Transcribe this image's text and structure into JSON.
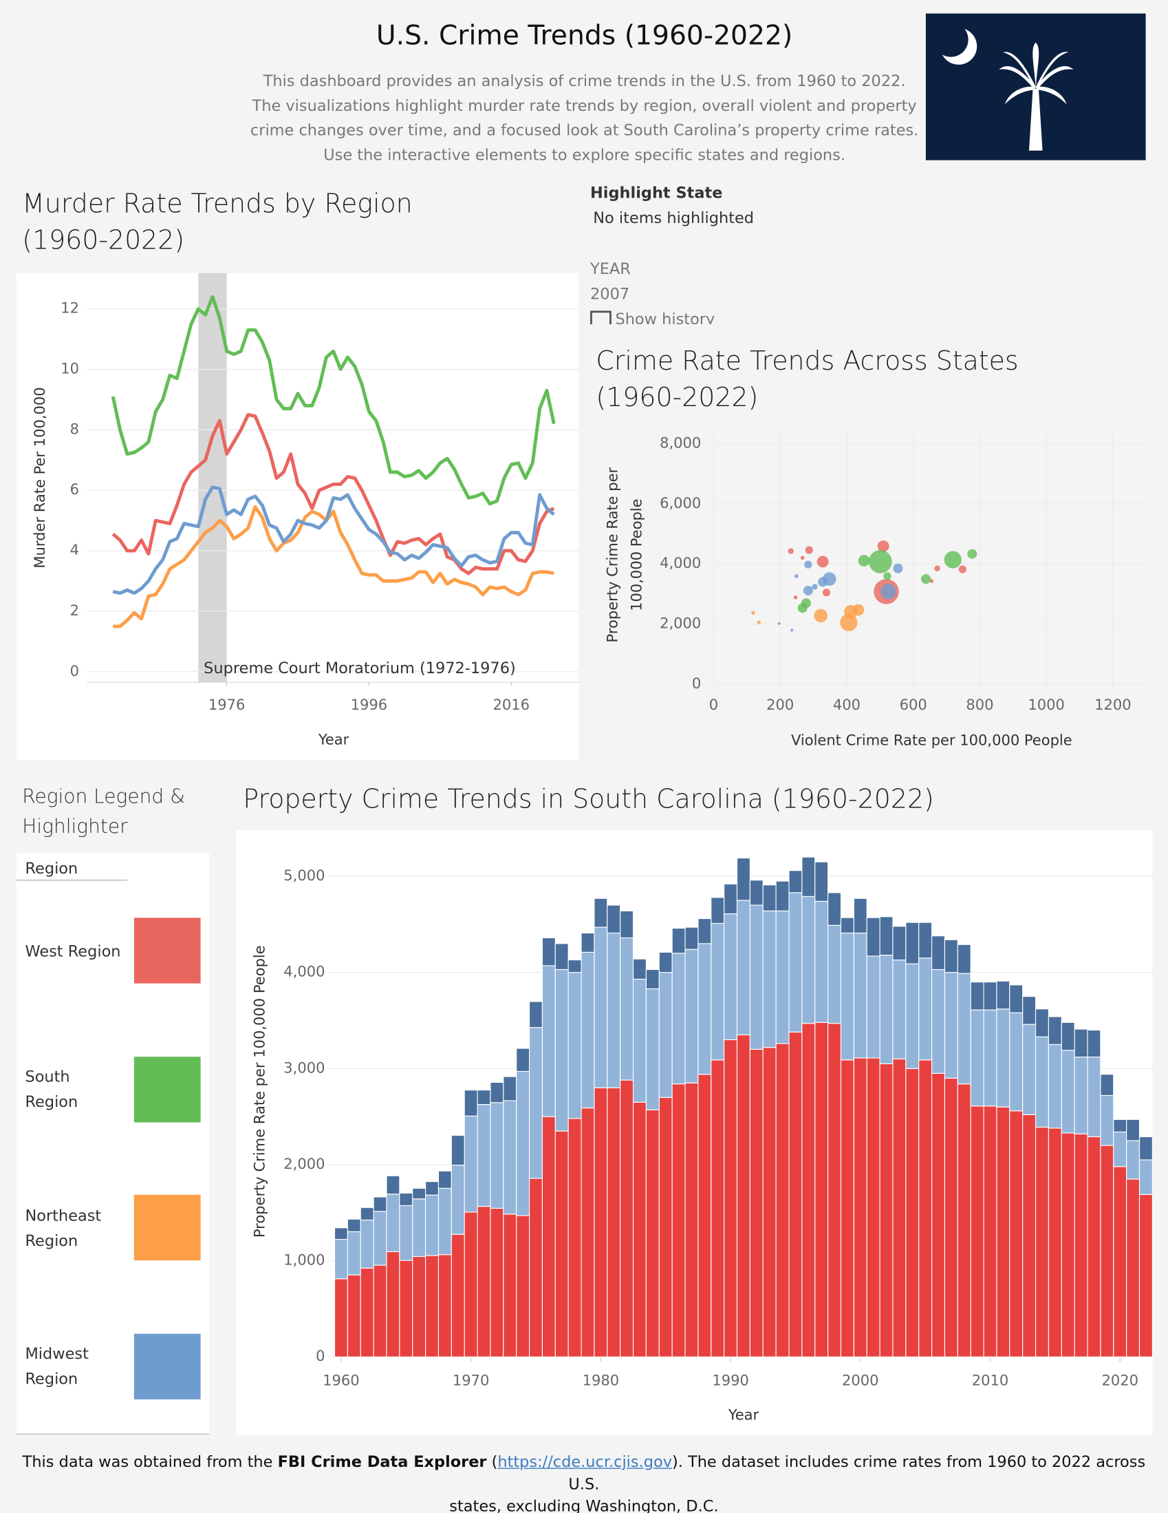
{
  "header": {
    "title": "U.S. Crime Trends (1960-2022)",
    "description": [
      "This dashboard provides an analysis of crime trends in the U.S. from 1960 to 2022.",
      "The visualizations highlight murder rate trends by region, overall violent and property",
      "crime changes over time, and a focused look at South Carolina’s property crime rates.",
      "Use the interactive elements to explore specific states and regions."
    ]
  },
  "controls": {
    "highlight_label": "Highlight State",
    "highlight_value": "No items highlighted",
    "year_label": "YEAR",
    "year_value": "2007",
    "history_label": "Show history"
  },
  "legend": {
    "title": "Region Legend & Highlighter",
    "header": "Region"
  },
  "footer": {
    "parts": [
      "This data was obtained from the ",
      "FBI Crime Data Explorer",
      " (",
      "https://cde.ucr.cjis.gov",
      "). The dataset includes crime rates from 1960 to 2022 across U.S."
    ],
    "line2": "states, excluding Washington, D.C."
  },
  "chart_data": [
    {
      "type": "line",
      "title": "Murder Rate Trends by Region (1960-2022)",
      "xlabel": "Year",
      "ylabel": "Murder Rate Per 100,000",
      "x": [
        1960,
        1961,
        1962,
        1963,
        1964,
        1965,
        1966,
        1967,
        1968,
        1969,
        1970,
        1971,
        1972,
        1973,
        1974,
        1975,
        1976,
        1977,
        1978,
        1979,
        1980,
        1981,
        1982,
        1983,
        1984,
        1985,
        1986,
        1987,
        1988,
        1989,
        1990,
        1991,
        1992,
        1993,
        1994,
        1995,
        1996,
        1997,
        1998,
        1999,
        2000,
        2001,
        2002,
        2003,
        2004,
        2005,
        2006,
        2007,
        2008,
        2009,
        2010,
        2011,
        2012,
        2013,
        2014,
        2015,
        2016,
        2017,
        2018,
        2019,
        2020,
        2021,
        2022
      ],
      "series": [
        {
          "name": "West Region",
          "color": "#e9665e",
          "values": [
            4.55,
            4.35,
            4.0,
            4.0,
            4.35,
            3.9,
            5.0,
            4.95,
            4.9,
            5.5,
            6.2,
            6.6,
            6.8,
            7.0,
            7.8,
            8.3,
            7.2,
            7.6,
            8.0,
            8.5,
            8.45,
            7.9,
            7.3,
            6.4,
            6.6,
            7.2,
            6.2,
            5.9,
            5.4,
            6.0,
            6.1,
            6.2,
            6.2,
            6.45,
            6.4,
            6.0,
            5.5,
            5.0,
            4.4,
            3.85,
            4.3,
            4.25,
            4.35,
            4.4,
            4.2,
            4.4,
            4.55,
            3.8,
            3.7,
            3.4,
            3.25,
            3.45,
            3.4,
            3.4,
            3.4,
            4.0,
            4.0,
            3.7,
            3.65,
            4.0,
            4.9,
            5.3,
            5.4
          ]
        },
        {
          "name": "South Region",
          "color": "#62bd55",
          "values": [
            9.1,
            8.0,
            7.2,
            7.25,
            7.4,
            7.6,
            8.6,
            9.0,
            9.8,
            9.7,
            10.6,
            11.5,
            12.0,
            11.8,
            12.4,
            11.7,
            10.6,
            10.5,
            10.6,
            11.3,
            11.3,
            10.9,
            10.3,
            9.0,
            8.7,
            8.7,
            9.2,
            8.8,
            8.8,
            9.4,
            10.4,
            10.6,
            10.0,
            10.4,
            10.1,
            9.5,
            8.6,
            8.3,
            7.6,
            6.6,
            6.6,
            6.45,
            6.5,
            6.65,
            6.4,
            6.6,
            6.9,
            7.05,
            6.7,
            6.2,
            5.75,
            5.8,
            5.9,
            5.55,
            5.65,
            6.4,
            6.85,
            6.9,
            6.4,
            6.9,
            8.7,
            9.3,
            8.2
          ]
        },
        {
          "name": "Northeast Region",
          "color": "#fd9e48",
          "values": [
            1.5,
            1.5,
            1.7,
            1.95,
            1.75,
            2.5,
            2.55,
            2.9,
            3.4,
            3.55,
            3.7,
            4.0,
            4.3,
            4.6,
            4.75,
            5.0,
            4.8,
            4.4,
            4.55,
            4.75,
            5.45,
            5.1,
            4.4,
            4.0,
            4.25,
            4.35,
            4.6,
            5.1,
            5.3,
            5.2,
            5.0,
            5.3,
            4.6,
            4.2,
            3.7,
            3.25,
            3.2,
            3.2,
            3.0,
            3.0,
            3.0,
            3.05,
            3.1,
            3.3,
            3.3,
            2.95,
            3.25,
            2.9,
            3.05,
            2.95,
            2.9,
            2.8,
            2.55,
            2.8,
            2.75,
            2.8,
            2.65,
            2.55,
            2.7,
            3.25,
            3.3,
            3.3,
            3.25
          ]
        },
        {
          "name": "Midwest Region",
          "color": "#6f9ccf",
          "values": [
            2.65,
            2.6,
            2.7,
            2.6,
            2.75,
            3.0,
            3.4,
            3.7,
            4.3,
            4.4,
            4.9,
            4.85,
            4.8,
            5.7,
            6.1,
            6.05,
            5.2,
            5.35,
            5.2,
            5.7,
            5.8,
            5.5,
            4.85,
            4.75,
            4.3,
            4.55,
            5.0,
            4.9,
            4.85,
            4.75,
            5.0,
            5.75,
            5.7,
            5.85,
            5.4,
            5.05,
            4.7,
            4.55,
            4.3,
            3.95,
            3.9,
            3.7,
            3.85,
            3.75,
            3.95,
            4.2,
            4.15,
            4.1,
            3.75,
            3.5,
            3.8,
            3.85,
            3.7,
            3.6,
            3.65,
            4.4,
            4.6,
            4.6,
            4.25,
            4.2,
            5.85,
            5.4,
            5.2
          ]
        }
      ],
      "annotation": {
        "text": "Supreme Court Moratorium (1972-1976)",
        "x0": 1972,
        "x1": 1976,
        "color": "#d6d6d6"
      },
      "xlim": [
        1957,
        2025
      ],
      "xticks": [
        1976,
        1996,
        2016
      ],
      "ylim": [
        -0.3,
        13
      ],
      "yticks": [
        0,
        2,
        4,
        6,
        8,
        10,
        12
      ],
      "grid": true
    },
    {
      "type": "scatter",
      "title": "Crime Rate Trends Across States (1960-2022)",
      "xlabel": "Violent Crime Rate per 100,000 People",
      "ylabel": [
        "Property Crime Rate per",
        "100,000 People"
      ],
      "series": [
        {
          "color": "#e9665e",
          "x": [
            519,
            748,
            672,
            510,
            328,
            339,
            287,
            232,
            267,
            246,
            655
          ],
          "values": [
            3080,
            3818,
            3850,
            4588,
            4074,
            3048,
            4459,
            4427,
            4203,
            2887,
            3433
          ],
          "sizes": [
            13,
            4,
            3,
            6,
            6,
            4,
            4,
            3,
            2,
            2,
            2
          ]
        },
        {
          "color": "#62bd55",
          "x": [
            501,
            719,
            777,
            638,
            452,
            278,
            267,
            522
          ],
          "values": [
            4074,
            4139,
            4331,
            3497,
            4106,
            2695,
            2535,
            3593
          ],
          "sizes": [
            12,
            9,
            5,
            5,
            6,
            5,
            5,
            4
          ]
        },
        {
          "color": "#fd9e48",
          "x": [
            406,
            412,
            435,
            322,
            119,
            136
          ],
          "values": [
            2053,
            2406,
            2470,
            2278,
            2374,
            2053
          ],
          "sizes": [
            9,
            7,
            6,
            7,
            2,
            2
          ]
        },
        {
          "color": "#6f9ccf",
          "x": [
            525,
            554,
            348,
            328,
            284,
            284,
            304,
            235,
            197,
            249
          ],
          "values": [
            3080,
            3850,
            3497,
            3400,
            3112,
            3978,
            3240,
            1797,
            2021,
            3593
          ],
          "sizes": [
            8,
            5,
            7,
            5,
            5,
            4,
            3,
            1.5,
            1.5,
            2
          ]
        }
      ],
      "xlim": [
        -100,
        1300
      ],
      "xticks": [
        0,
        200,
        400,
        600,
        800,
        1000,
        1200
      ],
      "ylim": [
        -500,
        8500
      ],
      "yticks": [
        0,
        {
          "value": 2000,
          "label": "2,000"
        },
        {
          "value": 4000,
          "label": "4,000"
        },
        {
          "value": 6000,
          "label": "6,000"
        },
        {
          "value": 8000,
          "label": "8,000"
        }
      ],
      "grid": true
    },
    {
      "type": "bar",
      "stacked": true,
      "title": "Property Crime Trends in South Carolina (1960-2022)",
      "xlabel": "Year",
      "ylabel": "Property Crime Rate per 100,000 People",
      "x": [
        1960,
        1961,
        1962,
        1963,
        1964,
        1965,
        1966,
        1967,
        1968,
        1969,
        1970,
        1971,
        1972,
        1973,
        1974,
        1975,
        1976,
        1977,
        1978,
        1979,
        1980,
        1981,
        1982,
        1983,
        1984,
        1985,
        1986,
        1987,
        1988,
        1989,
        1990,
        1991,
        1992,
        1993,
        1994,
        1995,
        1996,
        1997,
        1998,
        1999,
        2000,
        2001,
        2002,
        2003,
        2004,
        2005,
        2006,
        2007,
        2008,
        2009,
        2010,
        2011,
        2012,
        2013,
        2014,
        2015,
        2016,
        2017,
        2018,
        2019,
        2020,
        2021,
        2022
      ],
      "series": [
        {
          "color": "#e8403f",
          "values": [
            813,
            853,
            924,
            954,
            1094,
            1004,
            1044,
            1054,
            1064,
            1275,
            1506,
            1566,
            1546,
            1486,
            1470,
            1857,
            2500,
            2350,
            2480,
            2590,
            2800,
            2800,
            2880,
            2650,
            2570,
            2700,
            2840,
            2850,
            2940,
            3090,
            3300,
            3350,
            3200,
            3220,
            3260,
            3380,
            3470,
            3480,
            3470,
            3090,
            3110,
            3110,
            3050,
            3100,
            3000,
            3090,
            2950,
            2900,
            2840,
            2610,
            2610,
            2600,
            2560,
            2520,
            2390,
            2380,
            2330,
            2320,
            2290,
            2200,
            1980,
            1850,
            1690
          ]
        },
        {
          "color": "#93b4d9",
          "values": [
            410,
            450,
            500,
            560,
            600,
            570,
            600,
            630,
            690,
            720,
            1000,
            1060,
            1100,
            1180,
            1500,
            1570,
            1570,
            1680,
            1520,
            1620,
            1670,
            1610,
            1480,
            1280,
            1260,
            1300,
            1360,
            1390,
            1360,
            1420,
            1310,
            1400,
            1500,
            1420,
            1380,
            1450,
            1320,
            1260,
            1020,
            1320,
            1300,
            1060,
            1130,
            1030,
            1090,
            1060,
            1080,
            1100,
            1150,
            1000,
            1000,
            1020,
            1020,
            940,
            940,
            870,
            860,
            800,
            830,
            520,
            360,
            400,
            360
          ]
        },
        {
          "color": "#4a6f9c",
          "values": [
            120,
            130,
            130,
            150,
            190,
            130,
            110,
            140,
            180,
            310,
            270,
            150,
            210,
            250,
            240,
            270,
            290,
            270,
            130,
            200,
            300,
            290,
            280,
            210,
            200,
            210,
            260,
            230,
            260,
            270,
            310,
            440,
            260,
            270,
            310,
            230,
            410,
            410,
            340,
            160,
            360,
            400,
            400,
            350,
            430,
            370,
            350,
            340,
            300,
            290,
            290,
            290,
            290,
            290,
            290,
            290,
            290,
            290,
            280,
            220,
            130,
            220,
            240
          ]
        }
      ],
      "xlim": [
        1959.5,
        2022.5
      ],
      "xticks": [
        1960,
        1970,
        1980,
        1990,
        2000,
        2010,
        2020
      ],
      "ylim": [
        0,
        5400
      ],
      "yticks": [
        0,
        {
          "value": 1000,
          "label": "1,000"
        },
        {
          "value": 2000,
          "label": "2,000"
        },
        {
          "value": 3000,
          "label": "3,000"
        },
        {
          "value": 4000,
          "label": "4,000"
        },
        {
          "value": 5000,
          "label": "5,000"
        }
      ],
      "grid": true
    }
  ]
}
